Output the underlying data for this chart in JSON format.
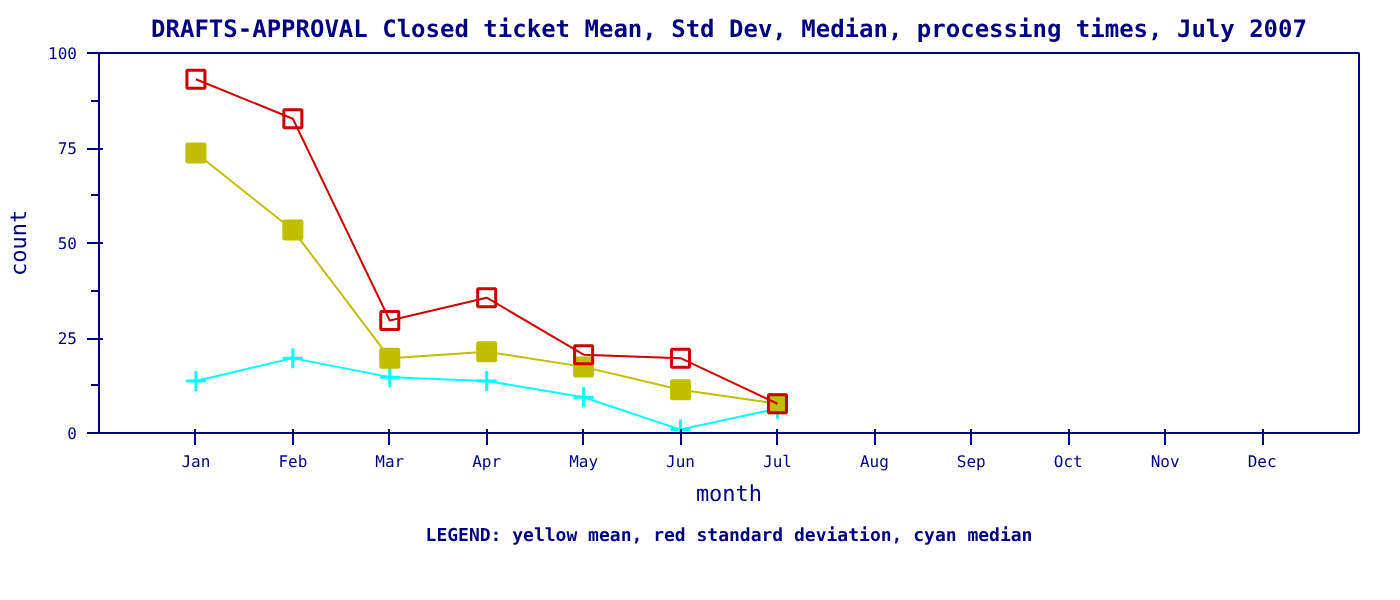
{
  "chart_data": {
    "type": "line",
    "title": "DRAFTS-APPROVAL Closed ticket Mean, Std Dev, Median, processing times, July 2007",
    "xlabel": "month",
    "ylabel": "count",
    "categories": [
      "Jan",
      "Feb",
      "Mar",
      "Apr",
      "May",
      "Jun",
      "Jul",
      "Aug",
      "Sep",
      "Oct",
      "Nov",
      "Dec"
    ],
    "series": [
      {
        "color": "#cc0000",
        "marker": "square",
        "values": [
          93.1,
          82.7,
          29.6,
          35.6,
          20.6,
          19.7,
          7.7,
          null,
          null,
          null,
          null,
          null
        ]
      },
      {
        "color": "#bfbf00",
        "marker": "square",
        "values": [
          73.7,
          53.4,
          19.7,
          21.4,
          17.4,
          11.4,
          7.7,
          null,
          null,
          null,
          null,
          null
        ]
      },
      {
        "color": "#00ffff",
        "marker": "cross",
        "values": [
          13.7,
          19.7,
          14.7,
          13.7,
          9.4,
          0.9,
          6.4,
          null,
          null,
          null,
          null,
          null
        ]
      }
    ],
    "ylim": [
      0,
      100
    ],
    "yticks": [
      0,
      25,
      50,
      75,
      100
    ],
    "grid": false,
    "annotations": [
      "LEGEND: yellow mean, red standard deviation, cyan median"
    ]
  }
}
